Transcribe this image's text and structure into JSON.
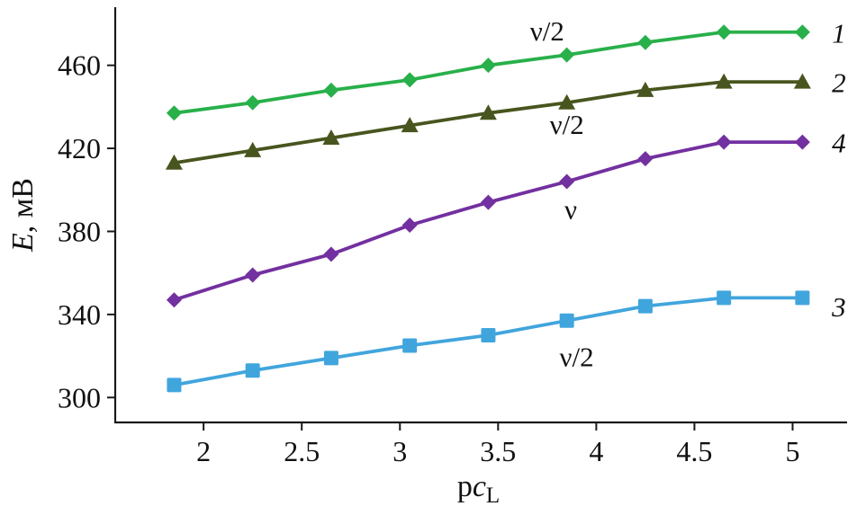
{
  "chart_data": {
    "type": "line",
    "title": "",
    "xlabel": {
      "roman": "p",
      "italic": "c",
      "sub": "L"
    },
    "ylabel": {
      "italic": "E",
      "roman": ", мВ"
    },
    "xlim": [
      1.55,
      5.25
    ],
    "ylim": [
      288,
      488
    ],
    "grid": false,
    "legend": "inline labels at right ends of lines",
    "x": [
      1.85,
      2.25,
      2.65,
      3.05,
      3.45,
      3.85,
      4.25,
      4.65,
      5.05
    ],
    "xticks": [
      2,
      2.5,
      3,
      3.5,
      4,
      4.5,
      5
    ],
    "xtick_labels": [
      "2",
      "2.5",
      "3",
      "3.5",
      "4",
      "4.5",
      "5"
    ],
    "yticks": [
      300,
      340,
      380,
      420,
      460
    ],
    "ytick_labels": [
      "300",
      "340",
      "380",
      "420",
      "460"
    ],
    "series": [
      {
        "name": "1",
        "marker": "diamond",
        "color": "#28b04a",
        "values": [
          437,
          442,
          448,
          453,
          460,
          465,
          471,
          476,
          476
        ],
        "label_x": 5.2,
        "label_y": 471
      },
      {
        "name": "2",
        "marker": "triangle",
        "color": "#48551e",
        "values": [
          413,
          419,
          425,
          431,
          437,
          442,
          448,
          452,
          452
        ],
        "label_x": 5.2,
        "label_y": 447
      },
      {
        "name": "4",
        "marker": "diamond",
        "color": "#7330a0",
        "values": [
          347,
          359,
          369,
          383,
          394,
          404,
          415,
          423,
          423
        ],
        "label_x": 5.2,
        "label_y": 418
      },
      {
        "name": "3",
        "marker": "square",
        "color": "#41a5dd",
        "values": [
          306,
          313,
          319,
          325,
          330,
          337,
          344,
          348,
          348
        ],
        "label_x": 5.2,
        "label_y": 339
      }
    ],
    "annotations": [
      {
        "text": "ν/2",
        "x": 3.75,
        "y": 472
      },
      {
        "text": "ν/2",
        "x": 3.85,
        "y": 427
      },
      {
        "text": "ν",
        "x": 3.87,
        "y": 386
      },
      {
        "text": "ν/2",
        "x": 3.9,
        "y": 315
      }
    ]
  }
}
